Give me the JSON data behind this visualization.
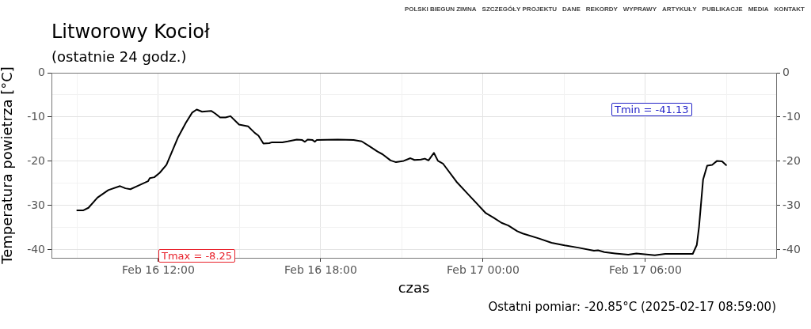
{
  "chart_data": {
    "type": "line",
    "title": "Litworowy Kocioł",
    "subtitle": "(ostatnie 24 godz.)",
    "xlabel": "czas",
    "ylabel": "Temperatura powietrza [°C]",
    "xlim": [
      "2025-02-16T08:03",
      "2025-02-17T10:50"
    ],
    "xticks": [
      {
        "value": "2025-02-16T09:00",
        "label": null
      },
      {
        "value": "2025-02-16T12:00",
        "label": "Feb 16 12:00"
      },
      {
        "value": "2025-02-16T15:00",
        "label": null
      },
      {
        "value": "2025-02-16T18:00",
        "label": "Feb 16 18:00"
      },
      {
        "value": "2025-02-16T21:00",
        "label": null
      },
      {
        "value": "2025-02-17T00:00",
        "label": "Feb 17 00:00"
      },
      {
        "value": "2025-02-17T03:00",
        "label": null
      },
      {
        "value": "2025-02-17T06:00",
        "label": "Feb 17 06:00"
      },
      {
        "value": "2025-02-17T09:00",
        "label": null
      }
    ],
    "ylim": [
      -41.8,
      0
    ],
    "yticks": [
      -40,
      {
        "value": -35,
        "label": null
      },
      -30,
      {
        "value": -25,
        "label": null
      },
      -20,
      {
        "value": -15,
        "label": null
      },
      -10,
      {
        "value": -5,
        "label": null
      },
      0
    ],
    "y2lim": [
      -41.8,
      0
    ],
    "y2ticks": [
      -40,
      -30,
      -20,
      -10,
      0
    ],
    "grid": true,
    "legend": false,
    "marker": "none",
    "line_style": "solid",
    "x": [
      "2025-02-16T09:00",
      "2025-02-16T09:13",
      "2025-02-16T09:25",
      "2025-02-16T09:45",
      "2025-02-16T10:09",
      "2025-02-16T10:35",
      "2025-02-16T10:47",
      "2025-02-16T10:58",
      "2025-02-16T11:13",
      "2025-02-16T11:37",
      "2025-02-16T11:41",
      "2025-02-16T11:51",
      "2025-02-16T12:03",
      "2025-02-16T12:18",
      "2025-02-16T12:44",
      "2025-02-16T13:01",
      "2025-02-16T13:15",
      "2025-02-16T13:25",
      "2025-02-16T13:37",
      "2025-02-16T13:57",
      "2025-02-16T14:06",
      "2025-02-16T14:17",
      "2025-02-16T14:29",
      "2025-02-16T14:40",
      "2025-02-16T14:59",
      "2025-02-16T15:19",
      "2025-02-16T15:34",
      "2025-02-16T15:42",
      "2025-02-16T15:53",
      "2025-02-16T16:06",
      "2025-02-16T16:12",
      "2025-02-16T16:35",
      "2025-02-16T16:47",
      "2025-02-16T17:07",
      "2025-02-16T17:19",
      "2025-02-16T17:25",
      "2025-02-16T17:31",
      "2025-02-16T17:42",
      "2025-02-16T17:47",
      "2025-02-16T17:51",
      "2025-02-16T18:38",
      "2025-02-16T19:13",
      "2025-02-16T19:31",
      "2025-02-16T19:48",
      "2025-02-16T20:06",
      "2025-02-16T20:17",
      "2025-02-16T20:35",
      "2025-02-16T20:47",
      "2025-02-16T21:04",
      "2025-02-16T21:19",
      "2025-02-16T21:28",
      "2025-02-16T21:42",
      "2025-02-16T21:51",
      "2025-02-16T21:59",
      "2025-02-16T22:11",
      "2025-02-16T22:20",
      "2025-02-16T22:31",
      "2025-02-16T23:01",
      "2025-02-16T23:22",
      "2025-02-16T23:45",
      "2025-02-17T00:06",
      "2025-02-17T00:23",
      "2025-02-17T00:41",
      "2025-02-17T00:56",
      "2025-02-17T01:16",
      "2025-02-17T01:28",
      "2025-02-17T02:03",
      "2025-02-17T02:32",
      "2025-02-17T03:01",
      "2025-02-17T03:31",
      "2025-02-17T04:06",
      "2025-02-17T04:15",
      "2025-02-17T04:29",
      "2025-02-17T04:53",
      "2025-02-17T05:22",
      "2025-02-17T05:40",
      "2025-02-17T06:21",
      "2025-02-17T06:44",
      "2025-02-17T07:45",
      "2025-02-17T07:54",
      "2025-02-17T07:59",
      "2025-02-17T08:08",
      "2025-02-17T08:17",
      "2025-02-17T08:28",
      "2025-02-17T08:39",
      "2025-02-17T08:50",
      "2025-02-17T08:59"
    ],
    "series": [
      {
        "color": "#000000",
        "values": [
          -31.1,
          -31.1,
          -30.5,
          -28.2,
          -26.5,
          -25.6,
          -26.1,
          -26.3,
          -25.6,
          -24.5,
          -23.8,
          -23.6,
          -22.6,
          -20.8,
          -14.5,
          -11.3,
          -9.0,
          -8.3,
          -8.8,
          -8.6,
          -9.2,
          -10.1,
          -10.1,
          -9.8,
          -11.7,
          -12.1,
          -13.6,
          -14.2,
          -16.0,
          -15.9,
          -15.7,
          -15.7,
          -15.5,
          -15.1,
          -15.2,
          -15.6,
          -15.1,
          -15.2,
          -15.6,
          -15.2,
          -15.1,
          -15.2,
          -15.5,
          -16.6,
          -17.8,
          -18.4,
          -19.8,
          -20.2,
          -19.9,
          -19.3,
          -19.7,
          -19.6,
          -19.4,
          -19.8,
          -18.1,
          -19.9,
          -20.5,
          -24.6,
          -26.9,
          -29.4,
          -31.7,
          -32.7,
          -33.9,
          -34.5,
          -35.8,
          -36.3,
          -37.4,
          -38.4,
          -39.0,
          -39.5,
          -40.2,
          -40.1,
          -40.5,
          -40.8,
          -41.1,
          -40.8,
          -41.2,
          -40.9,
          -40.9,
          -38.9,
          -34.8,
          -24.1,
          -21.0,
          -20.8,
          -19.9,
          -20.0,
          -20.85
        ]
      }
    ],
    "annotations": [
      "Tmax = -8.25",
      "Tmin = -41.13",
      "POLSKI BIEGUN ZIMNA",
      "SZCZEGÓŁY PROJEKTU",
      "DANE",
      "REKORDY",
      "WYPRAWY",
      "ARTYKUŁY",
      "PUBLIKACJE",
      "MEDIA",
      "KONTAKT",
      "Ostatni pomiar: -20.85°C (2025-02-17 08:59:00)"
    ]
  }
}
